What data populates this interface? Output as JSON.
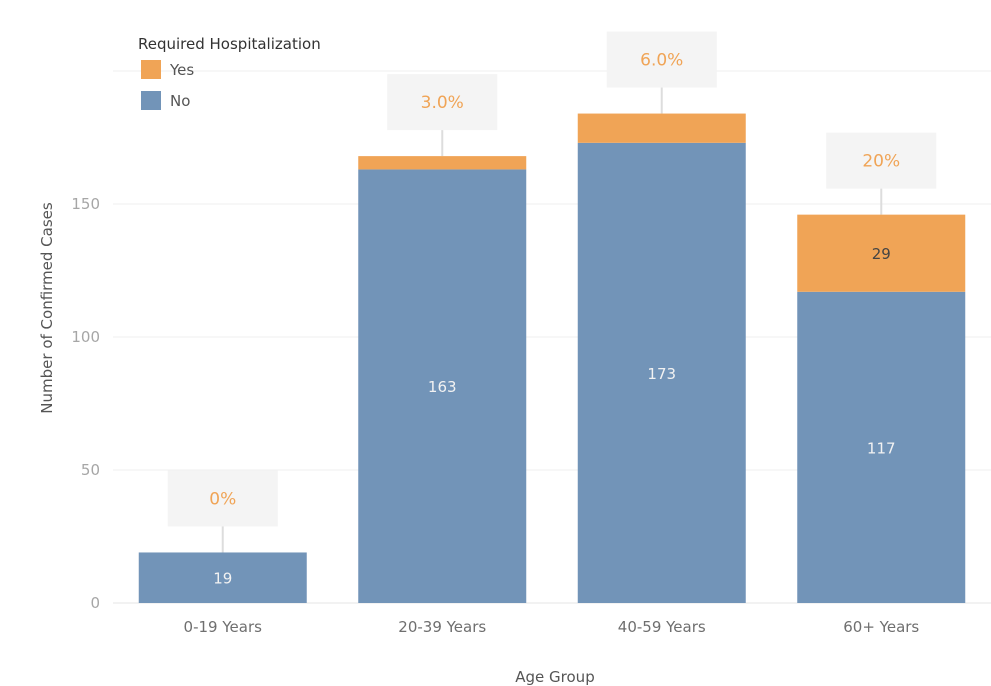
{
  "chart_data": {
    "type": "bar",
    "stacked": true,
    "categories": [
      "0-19 Years",
      "20-39 Years",
      "40-59 Years",
      "60+ Years"
    ],
    "series": [
      {
        "name": "No",
        "values": [
          19,
          163,
          173,
          117
        ],
        "color": "#7294b8"
      },
      {
        "name": "Yes",
        "values": [
          0,
          5,
          11,
          29
        ],
        "color": "#f0a456"
      }
    ],
    "segment_labels": {
      "No": [
        "19",
        "163",
        "173",
        "117"
      ],
      "Yes": [
        "",
        "",
        "",
        "29"
      ]
    },
    "percent_labels": [
      "0%",
      "3.0%",
      "6.0%",
      "20%"
    ],
    "xlabel": "Age Group",
    "ylabel": "Number of Confirmed Cases",
    "ylim": [
      0,
      200
    ],
    "yticks": [
      0,
      50,
      100,
      150,
      200
    ],
    "grid": true,
    "legend": {
      "title": "Required Hospitalization",
      "placement": "top-left",
      "entries": [
        "Yes",
        "No"
      ]
    },
    "colors": {
      "label_light": "#f2f2f2",
      "label_dark": "#444444",
      "percent": "#f0a456",
      "callout_bg": "#f4f4f4",
      "grid": "#efefef"
    }
  }
}
